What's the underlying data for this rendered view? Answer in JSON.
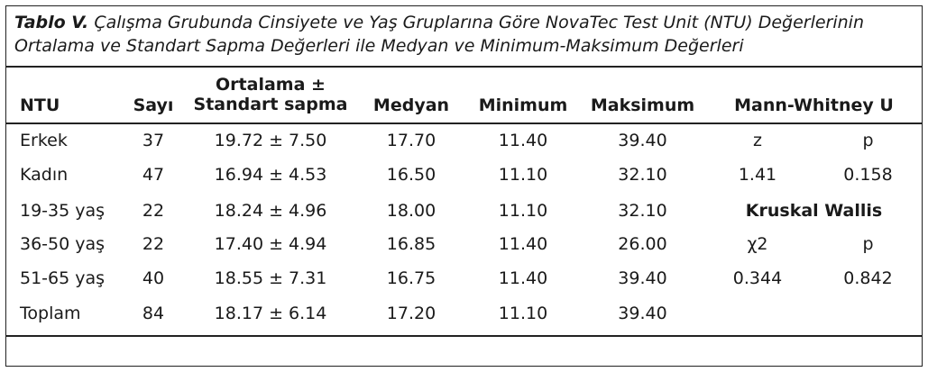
{
  "caption": {
    "label": "Tablo V.",
    "text": " Çalışma Grubunda Cinsiyete ve Yaş Gruplarına Göre NovaTec Test Unit (NTU) Değerlerinin Ortalama ve Standart Sapma Değerleri ile Medyan ve Minimum-Maksimum Değerleri"
  },
  "headers": {
    "ntu": "NTU",
    "sayi": "Sayı",
    "ortalama_line1": "Ortalama ±",
    "ortalama_line2": "Standart sapma",
    "medyan": "Medyan",
    "minimum": "Minimum",
    "maksimum": "Maksimum",
    "mann_whitney": "Mann-Whitney U"
  },
  "rows": [
    {
      "group": "Erkek",
      "n": "37",
      "mean_sd": "19.72 ± 7.50",
      "median": "17.70",
      "min": "11.40",
      "max": "39.40"
    },
    {
      "group": "Kadın",
      "n": "47",
      "mean_sd": "16.94 ± 4.53",
      "median": "16.50",
      "min": "11.10",
      "max": "32.10"
    },
    {
      "group": "19-35 yaş",
      "n": "22",
      "mean_sd": "18.24 ± 4.96",
      "median": "18.00",
      "min": "11.10",
      "max": "32.10"
    },
    {
      "group": "36-50 yaş",
      "n": "22",
      "mean_sd": "17.40 ± 4.94",
      "median": "16.85",
      "min": "11.40",
      "max": "26.00"
    },
    {
      "group": "51-65 yaş",
      "n": "40",
      "mean_sd": "18.55 ± 7.31",
      "median": "16.75",
      "min": "11.40",
      "max": "39.40"
    },
    {
      "group": "Toplam",
      "n": "84",
      "mean_sd": "18.17 ± 6.14",
      "median": "17.20",
      "min": "11.10",
      "max": "39.40"
    }
  ],
  "tests": {
    "mw_stat_label": "z",
    "mw_p_label": "p",
    "mw_stat_value": "1.41",
    "mw_p_value": "0.158",
    "kw_title": "Kruskal Wallis",
    "kw_stat_label": "χ2",
    "kw_p_label": "p",
    "kw_stat_value": "0.344",
    "kw_p_value": "0.842"
  }
}
